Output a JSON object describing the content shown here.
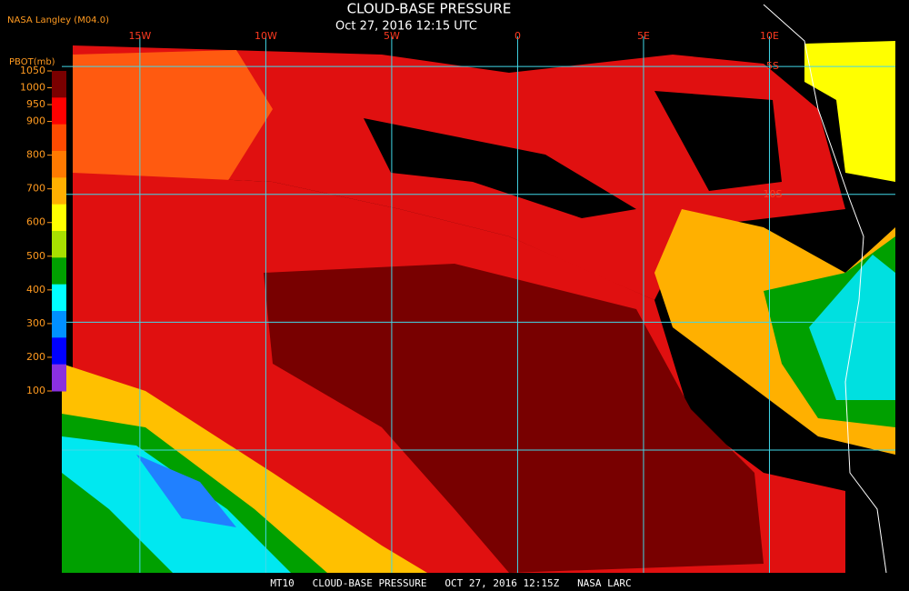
{
  "header": {
    "title": "CLOUD-BASE PRESSURE",
    "datetime": "Oct 27, 2016 12:15 UTC",
    "source": "NASA Langley (M04.0)"
  },
  "map": {
    "xlim": [
      -18.1,
      15.0
    ],
    "ylim": [
      -4.0,
      -24.8
    ],
    "grid_color": "#40d8e8",
    "lon_ticks": [
      {
        "value": -15,
        "label": "15W"
      },
      {
        "value": -10,
        "label": "10W"
      },
      {
        "value": -5,
        "label": "5W"
      },
      0,
      {
        "value": 5,
        "label": "5E"
      },
      {
        "value": 10,
        "label": "10E"
      }
    ],
    "lat_ticks": [
      {
        "value": -5,
        "label": "5S"
      },
      {
        "value": -10,
        "label": "10S"
      },
      {
        "value": -15,
        "label": null
      },
      {
        "value": -20,
        "label": null
      }
    ]
  },
  "colorbar": {
    "label": "PBOT(mb)",
    "clim": [
      100,
      1050
    ],
    "ticks": [
      1050,
      1000,
      950,
      900,
      800,
      700,
      600,
      500,
      400,
      300,
      200,
      100
    ],
    "colors": [
      "#7a0000",
      "#ff0000",
      "#ff4a00",
      "#ff7a00",
      "#ffb000",
      "#ffff00",
      "#a8e000",
      "#00a000",
      "#00ffff",
      "#0090ff",
      "#0000ff",
      "#8a30e0"
    ]
  },
  "footer": {
    "text": "MT10   CLOUD-BASE PRESSURE   OCT 27, 2016 12:15Z   NASA LARC"
  }
}
